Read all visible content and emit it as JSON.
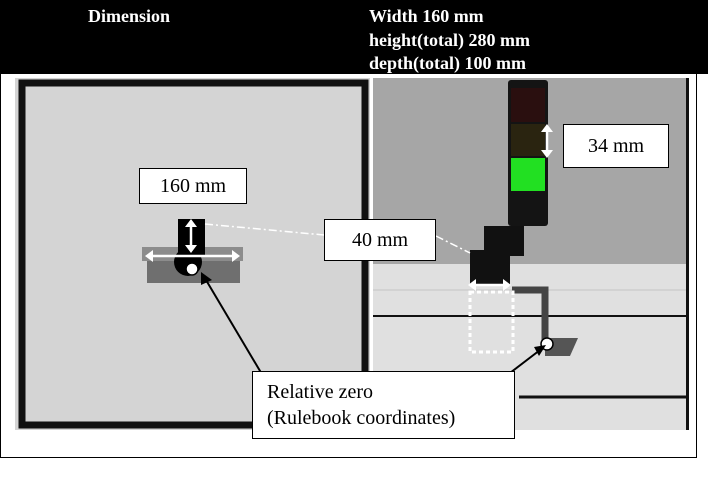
{
  "header": {
    "left_label": "Dimension",
    "spec_lines": [
      "Width 160 mm",
      "height(total) 280 mm",
      "depth(total) 100 mm"
    ]
  },
  "callouts": {
    "width_label": "160 mm",
    "depth_label": "40 mm",
    "segment_label": "34 mm",
    "zero_line1": "Relative zero",
    "zero_line2": "(Rulebook coordinates)"
  },
  "colors": {
    "header_bg": "#000000",
    "header_text": "#ffffff",
    "left_panel": "#d4d4d4",
    "right_wall": "#a6a6a6",
    "right_floor": "#e0e0e0",
    "light_green": "#22e022",
    "light_dark_red": "#2a0f0f",
    "light_dark_amber": "#2a2410",
    "tower_body": "#141414",
    "mount": "#555555",
    "dashed_outline": "#ffffff"
  }
}
